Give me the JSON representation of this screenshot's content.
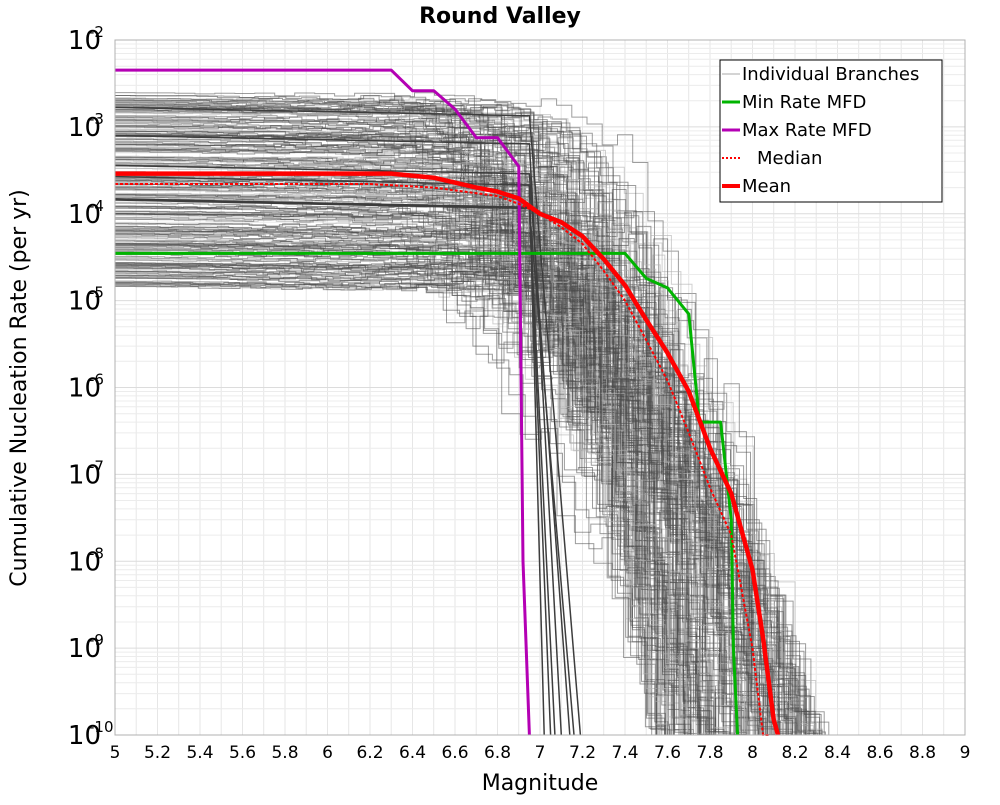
{
  "chart_data": {
    "type": "line",
    "title": "Round Valley",
    "xlabel": "Magnitude",
    "ylabel": "Cumulative Nucleation Rate (per yr)",
    "x_scale": "linear",
    "y_scale": "log",
    "xlim": [
      5,
      9
    ],
    "ylim": [
      1e-10,
      0.01
    ],
    "grid": true,
    "legend_position": "top-right",
    "x_ticks": [
      "5",
      "5.2",
      "5.4",
      "5.6",
      "5.8",
      "6",
      "6.2",
      "6.4",
      "6.6",
      "6.8",
      "7",
      "7.2",
      "7.4",
      "7.6",
      "7.8",
      "8",
      "8.2",
      "8.4",
      "8.6",
      "8.8",
      "9"
    ],
    "y_ticks": [
      {
        "base": "10",
        "exp": "-2"
      },
      {
        "base": "10",
        "exp": "-3"
      },
      {
        "base": "10",
        "exp": "-4"
      },
      {
        "base": "10",
        "exp": "-5"
      },
      {
        "base": "10",
        "exp": "-6"
      },
      {
        "base": "10",
        "exp": "-7"
      },
      {
        "base": "10",
        "exp": "-8"
      },
      {
        "base": "10",
        "exp": "-9"
      },
      {
        "base": "10",
        "exp": "-10"
      }
    ],
    "series": [
      {
        "name": "Min Rate MFD",
        "color": "#00b400",
        "style": "solid",
        "x": [
          5.0,
          6.0,
          7.0,
          7.4,
          7.5,
          7.6,
          7.7,
          7.75,
          7.85,
          7.9,
          7.91,
          7.93
        ],
        "y": [
          3.5e-05,
          3.5e-05,
          3.5e-05,
          3.5e-05,
          1.8e-05,
          1.4e-05,
          7e-06,
          4e-07,
          4e-07,
          3e-08,
          1e-09,
          1e-10
        ]
      },
      {
        "name": "Max Rate MFD",
        "color": "#b400b4",
        "style": "solid",
        "x": [
          5.0,
          6.3,
          6.4,
          6.5,
          6.6,
          6.7,
          6.8,
          6.9,
          6.92,
          6.95
        ],
        "y": [
          0.0045,
          0.0045,
          0.0026,
          0.0026,
          0.0016,
          0.00075,
          0.00075,
          0.00035,
          1e-08,
          1e-10
        ]
      },
      {
        "name": "Median",
        "color": "#ff0000",
        "style": "dotted",
        "x": [
          5.0,
          6.2,
          6.5,
          6.8,
          6.9,
          7.0,
          7.1,
          7.2,
          7.3,
          7.4,
          7.5,
          7.6,
          7.7,
          7.8,
          7.9,
          8.0,
          8.05,
          8.08
        ],
        "y": [
          0.00022,
          0.00022,
          0.0002,
          0.00016,
          0.00013,
          0.0001,
          7e-05,
          4.5e-05,
          2.2e-05,
          1e-05,
          3.5e-06,
          1.2e-06,
          3e-07,
          7e-08,
          2e-08,
          1e-09,
          1e-10,
          1e-10
        ]
      },
      {
        "name": "Mean",
        "color": "#ff0000",
        "style": "solid",
        "x": [
          5.0,
          6.3,
          6.5,
          6.7,
          6.8,
          6.9,
          7.0,
          7.1,
          7.2,
          7.3,
          7.4,
          7.5,
          7.6,
          7.7,
          7.8,
          7.9,
          8.0,
          8.05,
          8.1,
          8.12
        ],
        "y": [
          0.00029,
          0.00029,
          0.00026,
          0.0002,
          0.00018,
          0.00015,
          0.0001,
          8e-05,
          5.5e-05,
          3e-05,
          1.5e-05,
          6e-06,
          2.5e-06,
          9e-07,
          2e-07,
          6e-08,
          8e-09,
          1.3e-09,
          1.5e-10,
          1e-10
        ]
      }
    ],
    "legend": [
      {
        "label": "Individual Branches",
        "color": "#aaaaaa",
        "style": "thin"
      },
      {
        "label": "Min Rate MFD",
        "color": "#00b400",
        "style": "solid"
      },
      {
        "label": "Max Rate MFD",
        "color": "#b400b4",
        "style": "solid"
      },
      {
        "label": "Median",
        "color": "#ff0000",
        "style": "dotted"
      },
      {
        "label": "Mean",
        "color": "#ff0000",
        "style": "thick"
      }
    ]
  }
}
